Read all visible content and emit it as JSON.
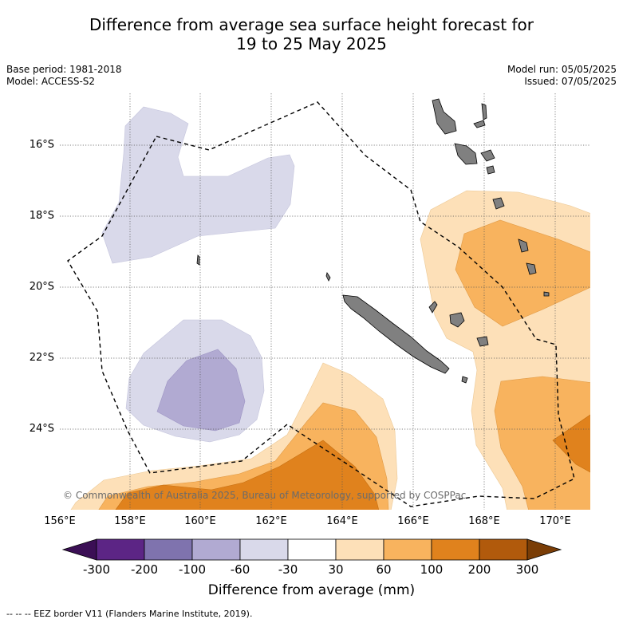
{
  "title": {
    "line1": "Difference from average sea surface height forecast for",
    "line2": "19 to 25 May 2025"
  },
  "meta_left": {
    "base_period": "Base period: 1981-2018",
    "model": "Model: ACCESS-S2"
  },
  "meta_right": {
    "model_run": "Model run: 05/05/2025",
    "issued": "Issued: 07/05/2025"
  },
  "map": {
    "lon_range": [
      156,
      171
    ],
    "lat_range": [
      -26.2,
      -14.6
    ],
    "lat_labels": [
      "16°S",
      "18°S",
      "20°S",
      "22°S",
      "24°S"
    ],
    "lon_labels": [
      "156°E",
      "158°E",
      "160°E",
      "162°E",
      "164°E",
      "166°E",
      "168°E",
      "170°E"
    ],
    "gridlines": "dotted",
    "land_color": "#808080",
    "land_features": [
      "New Caledonia",
      "Vanuatu",
      "Loyalty Islands"
    ],
    "eez_border": "dashed"
  },
  "copyright": "© Commonwealth of Australia 2025, Bureau of Meteorology, supported by COSPPac",
  "colorbar": {
    "ticks": [
      "-300",
      "-200",
      "-100",
      "-60",
      "-30",
      "30",
      "60",
      "100",
      "200",
      "300"
    ],
    "colors": [
      "#3b0f55",
      "#5c2585",
      "#7f73ae",
      "#b1aad2",
      "#d9d9ea",
      "#ffffff",
      "#fde0b8",
      "#f8b35e",
      "#e0821d",
      "#b15a0c",
      "#7a3d06"
    ],
    "label": "Difference from average (mm)"
  },
  "footer": "--  --  -- EEZ border V11 (Flanders Marine Institute, 2019)."
}
